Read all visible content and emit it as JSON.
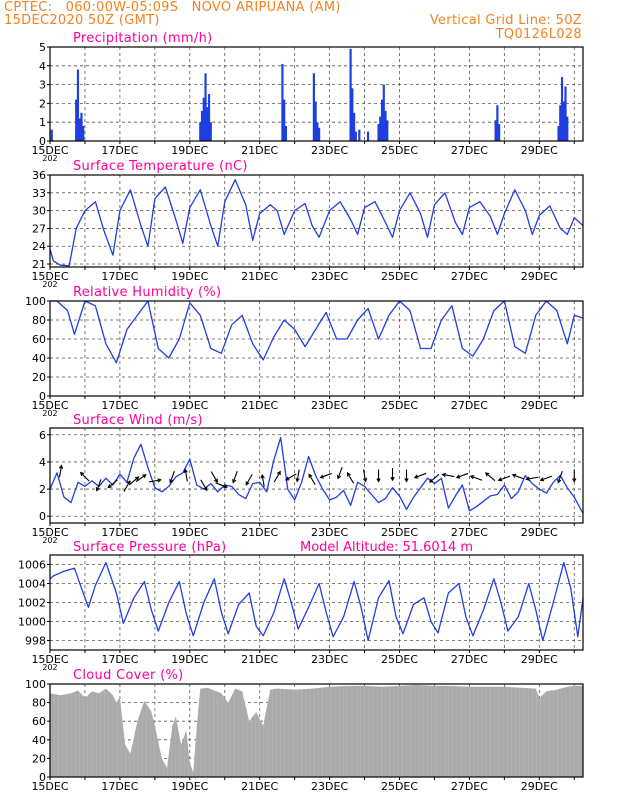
{
  "header": {
    "line1": "CPTEC:   060:00W-05:09S   NOVO ARIPUANA (AM)",
    "line2": "15DEC2020 50Z (GMT)",
    "right1": "Vertical Grid Line: 50Z",
    "right2": "TQ0126L028",
    "color": "#f58220"
  },
  "colors": {
    "title": "#ff0099",
    "series": "#1f3fe0",
    "cloud": "#aaaaaa",
    "axis": "#000000",
    "grid": "#555555"
  },
  "x_axis": {
    "ticks": [
      {
        "day": 15,
        "label": "15DEC"
      },
      {
        "day": 17,
        "label": "17DEC"
      },
      {
        "day": 19,
        "label": "19DEC"
      },
      {
        "day": 21,
        "label": "21DEC"
      },
      {
        "day": 23,
        "label": "23DEC"
      },
      {
        "day": 25,
        "label": "25DEC"
      },
      {
        "day": 27,
        "label": "27DEC"
      },
      {
        "day": 29,
        "label": "29DEC"
      }
    ],
    "range_days": [
      15,
      30.25
    ],
    "clipped_label": "202"
  },
  "chart_data": [
    {
      "type": "bar",
      "title": "Precipitation (mm/h)",
      "ylim": [
        0,
        5
      ],
      "yticks": [
        0,
        1,
        2,
        3,
        4,
        5
      ],
      "bars": [
        [
          15.05,
          0.6
        ],
        [
          15.75,
          2.2
        ],
        [
          15.8,
          3.8
        ],
        [
          15.85,
          1.2
        ],
        [
          15.9,
          1.5
        ],
        [
          15.95,
          0.8
        ],
        [
          19.3,
          1.0
        ],
        [
          19.35,
          1.6
        ],
        [
          19.4,
          2.3
        ],
        [
          19.45,
          3.6
        ],
        [
          19.5,
          1.8
        ],
        [
          19.55,
          2.5
        ],
        [
          19.6,
          1.0
        ],
        [
          21.65,
          4.1
        ],
        [
          21.7,
          2.2
        ],
        [
          21.75,
          0.8
        ],
        [
          22.55,
          3.6
        ],
        [
          22.6,
          2.1
        ],
        [
          22.65,
          1.0
        ],
        [
          22.7,
          0.7
        ],
        [
          23.6,
          4.9
        ],
        [
          23.65,
          2.8
        ],
        [
          23.7,
          1.5
        ],
        [
          23.75,
          0.5
        ],
        [
          23.85,
          0.6
        ],
        [
          24.1,
          0.5
        ],
        [
          24.4,
          0.9
        ],
        [
          24.45,
          1.3
        ],
        [
          24.5,
          2.2
        ],
        [
          24.55,
          3.0
        ],
        [
          24.6,
          1.6
        ],
        [
          24.65,
          1.1
        ],
        [
          27.75,
          1.1
        ],
        [
          27.8,
          1.9
        ],
        [
          27.85,
          0.9
        ],
        [
          29.55,
          0.8
        ],
        [
          29.6,
          1.9
        ],
        [
          29.65,
          3.4
        ],
        [
          29.7,
          2.1
        ],
        [
          29.75,
          2.9
        ],
        [
          29.8,
          1.3
        ]
      ]
    },
    {
      "type": "line",
      "title": "Surface Temperature (nC)",
      "ylim": [
        20.5,
        36
      ],
      "yticks": [
        21,
        24,
        27,
        30,
        33,
        36
      ],
      "x": [
        15,
        15.1,
        15.3,
        15.55,
        15.75,
        16,
        16.3,
        16.55,
        16.8,
        17,
        17.3,
        17.6,
        17.8,
        18,
        18.3,
        18.6,
        18.8,
        19,
        19.3,
        19.6,
        19.8,
        20,
        20.3,
        20.6,
        20.8,
        21,
        21.3,
        21.5,
        21.7,
        22,
        22.3,
        22.5,
        22.7,
        23,
        23.3,
        23.6,
        23.8,
        24,
        24.3,
        24.6,
        24.8,
        25,
        25.3,
        25.6,
        25.8,
        26,
        26.3,
        26.6,
        26.8,
        27,
        27.3,
        27.6,
        27.8,
        28,
        28.3,
        28.6,
        28.8,
        29,
        29.3,
        29.6,
        29.8,
        30,
        30.25
      ],
      "y": [
        23.5,
        21.5,
        20.8,
        20.7,
        27,
        30,
        31.5,
        26.5,
        22.5,
        30,
        33.5,
        27.5,
        24,
        32,
        34,
        28.5,
        24.5,
        30.5,
        33.5,
        27.5,
        24,
        31.5,
        35.2,
        31,
        25,
        29.5,
        31,
        30,
        26,
        30,
        31.2,
        27.5,
        25.5,
        30,
        31.5,
        28.5,
        26,
        30.5,
        31.5,
        28,
        25.5,
        30,
        33,
        29.5,
        25.5,
        31,
        33,
        28,
        26,
        30.5,
        31.5,
        29,
        26,
        29.5,
        33.5,
        30,
        26,
        29.2,
        30.8,
        27,
        26,
        28.8,
        27.5
      ]
    },
    {
      "type": "line",
      "title": "Relative Humidity (%)",
      "ylim": [
        0,
        100
      ],
      "yticks": [
        0,
        20,
        40,
        60,
        80,
        100
      ],
      "x": [
        15,
        15.2,
        15.5,
        15.7,
        16,
        16.3,
        16.6,
        16.9,
        17.2,
        17.5,
        17.8,
        18.1,
        18.4,
        18.7,
        19,
        19.3,
        19.6,
        19.9,
        20.2,
        20.5,
        20.8,
        21.1,
        21.4,
        21.7,
        22,
        22.3,
        22.6,
        22.9,
        23.2,
        23.5,
        23.8,
        24.1,
        24.4,
        24.7,
        25,
        25.3,
        25.6,
        25.9,
        26.2,
        26.5,
        26.8,
        27.1,
        27.4,
        27.7,
        28,
        28.3,
        28.6,
        28.9,
        29.2,
        29.5,
        29.8,
        30,
        30.25
      ],
      "y": [
        100,
        100,
        90,
        65,
        100,
        95,
        55,
        35,
        70,
        85,
        100,
        50,
        40,
        60,
        98,
        85,
        50,
        45,
        75,
        85,
        55,
        38,
        62,
        80,
        70,
        52,
        70,
        88,
        60,
        60,
        80,
        92,
        60,
        85,
        100,
        90,
        50,
        50,
        80,
        95,
        50,
        42,
        60,
        90,
        100,
        52,
        45,
        85,
        100,
        90,
        55,
        85,
        82
      ]
    },
    {
      "type": "line",
      "title": "Surface Wind (m/s)",
      "ylim": [
        -0.5,
        6.5
      ],
      "yticks": [
        0,
        2,
        4,
        6
      ],
      "x": [
        15,
        15.2,
        15.4,
        15.6,
        15.8,
        16,
        16.2,
        16.4,
        16.6,
        16.8,
        17,
        17.2,
        17.4,
        17.6,
        17.8,
        18,
        18.2,
        18.4,
        18.6,
        18.8,
        19,
        19.2,
        19.4,
        19.6,
        19.8,
        20,
        20.2,
        20.4,
        20.6,
        20.8,
        21,
        21.2,
        21.4,
        21.6,
        21.8,
        22,
        22.2,
        22.4,
        22.6,
        22.8,
        23,
        23.2,
        23.4,
        23.6,
        23.8,
        24,
        24.2,
        24.4,
        24.6,
        24.8,
        25,
        25.2,
        25.4,
        25.6,
        25.8,
        26,
        26.2,
        26.4,
        26.6,
        26.8,
        27,
        27.2,
        27.4,
        27.6,
        27.8,
        28,
        28.2,
        28.4,
        28.6,
        28.8,
        29,
        29.2,
        29.4,
        29.6,
        29.8,
        30,
        30.25
      ],
      "y": [
        2.0,
        3.2,
        1.4,
        1.0,
        2.5,
        2.2,
        2.6,
        2.2,
        2.8,
        2.3,
        3.1,
        2.5,
        4.3,
        5.3,
        3.6,
        2.1,
        1.8,
        2.2,
        2.9,
        3.2,
        4.2,
        2.3,
        2.0,
        2.4,
        1.8,
        2.3,
        2.2,
        1.6,
        1.3,
        2.4,
        2.5,
        1.8,
        4.1,
        5.8,
        2.0,
        1.2,
        2.5,
        4.4,
        3.0,
        2.0,
        1.2,
        1.4,
        1.9,
        0.8,
        2.5,
        2.2,
        1.6,
        1.0,
        1.3,
        2.1,
        1.5,
        0.5,
        1.4,
        2.1,
        2.8,
        2.4,
        2.8,
        0.6,
        1.5,
        2.3,
        0.4,
        0.7,
        1.1,
        1.5,
        1.6,
        2.3,
        1.3,
        1.8,
        3.0,
        2.4,
        2.0,
        1.7,
        2.5,
        3.0,
        2.1,
        1.4,
        0.2
      ],
      "arrows": [
        [
          15.3,
          3.3,
          80
        ],
        [
          16.0,
          2.9,
          135
        ],
        [
          16.4,
          2.3,
          250
        ],
        [
          16.8,
          2.4,
          220
        ],
        [
          17.2,
          2.2,
          60
        ],
        [
          17.4,
          2.6,
          40
        ],
        [
          17.6,
          2.8,
          35
        ],
        [
          18.0,
          2.6,
          10
        ],
        [
          18.5,
          2.9,
          250
        ],
        [
          18.9,
          3.0,
          100
        ],
        [
          19.4,
          2.3,
          300
        ],
        [
          19.7,
          2.9,
          300
        ],
        [
          19.9,
          2.3,
          340
        ],
        [
          20.3,
          2.9,
          250
        ],
        [
          20.7,
          2.7,
          240
        ],
        [
          21.1,
          2.6,
          100
        ],
        [
          21.5,
          2.9,
          60
        ],
        [
          21.9,
          2.9,
          210
        ],
        [
          22.1,
          3.0,
          260
        ],
        [
          22.5,
          2.7,
          120
        ],
        [
          22.9,
          3.0,
          200
        ],
        [
          23.3,
          3.2,
          250
        ],
        [
          23.6,
          2.8,
          120
        ],
        [
          24.0,
          3.0,
          280
        ],
        [
          24.4,
          3.0,
          270
        ],
        [
          24.8,
          3.1,
          270
        ],
        [
          25.2,
          3.0,
          270
        ],
        [
          25.6,
          3.0,
          200
        ],
        [
          26.0,
          2.8,
          220
        ],
        [
          26.4,
          3.0,
          170
        ],
        [
          26.8,
          3.0,
          200
        ],
        [
          27.2,
          2.8,
          160
        ],
        [
          27.6,
          2.9,
          140
        ],
        [
          28.0,
          2.8,
          200
        ],
        [
          28.4,
          2.9,
          160
        ],
        [
          28.8,
          2.8,
          190
        ],
        [
          29.2,
          2.8,
          200
        ],
        [
          29.6,
          2.9,
          250
        ],
        [
          30.0,
          3.0,
          270
        ]
      ]
    },
    {
      "type": "line",
      "title": "Surface Pressure (hPa)",
      "annotation": "Model Altitude: 51.6014 m",
      "ylim": [
        997,
        1007
      ],
      "yticks": [
        998,
        1000,
        1002,
        1004,
        1006
      ],
      "x": [
        15,
        15.1,
        15.4,
        15.7,
        15.9,
        16.1,
        16.3,
        16.6,
        16.9,
        17.1,
        17.4,
        17.7,
        17.9,
        18.1,
        18.4,
        18.7,
        18.9,
        19.1,
        19.4,
        19.7,
        19.9,
        20.1,
        20.4,
        20.7,
        20.9,
        21.1,
        21.4,
        21.7,
        21.9,
        22.1,
        22.4,
        22.7,
        22.9,
        23.1,
        23.4,
        23.7,
        23.9,
        24.1,
        24.4,
        24.7,
        24.9,
        25.1,
        25.4,
        25.7,
        25.9,
        26.1,
        26.4,
        26.7,
        26.9,
        27.1,
        27.4,
        27.7,
        27.9,
        28.1,
        28.4,
        28.7,
        28.9,
        29.1,
        29.4,
        29.7,
        29.9,
        30.1,
        30.25
      ],
      "y": [
        1004.5,
        1004.8,
        1005.3,
        1005.6,
        1003.5,
        1001.5,
        1003.8,
        1006.2,
        1003.0,
        999.8,
        1002.5,
        1004.2,
        1001.2,
        999.0,
        1002.0,
        1004.2,
        1000.8,
        998.5,
        1002.0,
        1004.5,
        1001.0,
        998.7,
        1001.8,
        1003.0,
        999.5,
        998.5,
        1000.9,
        1004.5,
        1002.0,
        999.2,
        1001.5,
        1004.0,
        1001.0,
        998.4,
        1000.5,
        1004.2,
        1001.5,
        998.0,
        1002.5,
        1004.3,
        1000.5,
        998.7,
        1001.8,
        1002.5,
        1000.0,
        998.8,
        1003.0,
        1004.0,
        1000.5,
        998.5,
        1001.2,
        1004.5,
        1002.0,
        999.0,
        1000.5,
        1004.0,
        1001.2,
        998.0,
        1002.0,
        1006.2,
        1003.5,
        998.4,
        1002.5
      ]
    },
    {
      "type": "area",
      "title": "Cloud Cover (%)",
      "ylim": [
        0,
        100
      ],
      "yticks": [
        0,
        20,
        40,
        60,
        80,
        100
      ],
      "x": [
        15,
        15.3,
        15.6,
        15.8,
        16.0,
        16.2,
        16.4,
        16.6,
        16.8,
        16.9,
        17.0,
        17.15,
        17.3,
        17.5,
        17.7,
        17.9,
        18.0,
        18.2,
        18.35,
        18.5,
        18.6,
        18.75,
        18.9,
        19.0,
        19.1,
        19.2,
        19.3,
        19.5,
        19.7,
        19.9,
        20.1,
        20.3,
        20.5,
        20.7,
        20.9,
        21.1,
        21.3,
        21.5,
        22.0,
        22.5,
        23.0,
        23.5,
        24.0,
        24.5,
        25.0,
        25.5,
        26.0,
        26.5,
        27.0,
        27.5,
        28.0,
        28.5,
        28.9,
        29.0,
        29.2,
        29.5,
        29.8,
        30.0,
        30.25
      ],
      "y": [
        90,
        88,
        90,
        93,
        85,
        92,
        90,
        95,
        88,
        80,
        86,
        35,
        25,
        60,
        82,
        70,
        55,
        20,
        10,
        55,
        65,
        35,
        50,
        15,
        5,
        55,
        95,
        96,
        93,
        90,
        80,
        95,
        92,
        60,
        70,
        55,
        94,
        95,
        94,
        95,
        97,
        98,
        98,
        97,
        98,
        99,
        98,
        98,
        97,
        97,
        97,
        96,
        95,
        85,
        92,
        94,
        97,
        98,
        98
      ]
    }
  ]
}
